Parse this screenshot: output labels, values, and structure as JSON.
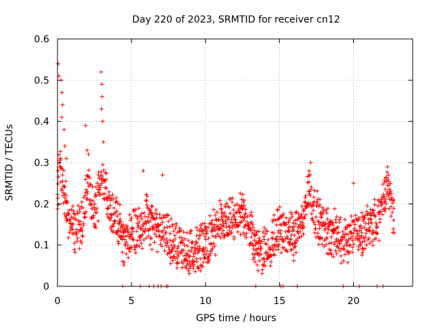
{
  "chart_data": {
    "type": "scatter",
    "title": "Day 220 of 2023, SRMTID for receiver cn12",
    "xlabel": "GPS time / hours",
    "ylabel": "SRMTID / TECUs",
    "xlim": [
      0,
      24
    ],
    "ylim": [
      0,
      0.6
    ],
    "xticks": [
      0,
      5,
      10,
      15,
      20
    ],
    "yticks": [
      0,
      0.1,
      0.2,
      0.3,
      0.4,
      0.5,
      0.6
    ],
    "xtick_labels": [
      "0",
      "5",
      "10",
      "15",
      "20"
    ],
    "ytick_labels": [
      "0",
      "0.1",
      "0.2",
      "0.3",
      "0.4",
      "0.5",
      "0.6"
    ],
    "grid": true,
    "marker": "plus",
    "color": "#ff0000",
    "series": [
      {
        "name": "SRMTID",
        "x_start": 0.0,
        "x_end": 22.75,
        "x_step": 0.025,
        "trend": [
          [
            0.0,
            0.2
          ],
          [
            0.15,
            0.3
          ],
          [
            0.4,
            0.24
          ],
          [
            0.8,
            0.15
          ],
          [
            1.2,
            0.13
          ],
          [
            1.7,
            0.17
          ],
          [
            2.1,
            0.25
          ],
          [
            2.5,
            0.17
          ],
          [
            3.0,
            0.25
          ],
          [
            3.5,
            0.2
          ],
          [
            4.0,
            0.17
          ],
          [
            4.5,
            0.1
          ],
          [
            5.0,
            0.13
          ],
          [
            5.5,
            0.14
          ],
          [
            6.0,
            0.17
          ],
          [
            6.5,
            0.14
          ],
          [
            7.0,
            0.14
          ],
          [
            7.5,
            0.12
          ],
          [
            8.0,
            0.1
          ],
          [
            8.5,
            0.08
          ],
          [
            9.0,
            0.085
          ],
          [
            9.5,
            0.09
          ],
          [
            10.0,
            0.1
          ],
          [
            10.5,
            0.12
          ],
          [
            11.0,
            0.15
          ],
          [
            11.5,
            0.15
          ],
          [
            12.0,
            0.16
          ],
          [
            12.5,
            0.17
          ],
          [
            13.0,
            0.14
          ],
          [
            13.5,
            0.09
          ],
          [
            14.0,
            0.09
          ],
          [
            14.5,
            0.11
          ],
          [
            15.0,
            0.14
          ],
          [
            15.5,
            0.12
          ],
          [
            16.0,
            0.12
          ],
          [
            16.5,
            0.15
          ],
          [
            17.0,
            0.24
          ],
          [
            17.4,
            0.18
          ],
          [
            18.0,
            0.14
          ],
          [
            18.5,
            0.13
          ],
          [
            19.0,
            0.12
          ],
          [
            19.5,
            0.11
          ],
          [
            20.0,
            0.13
          ],
          [
            20.5,
            0.12
          ],
          [
            21.0,
            0.16
          ],
          [
            21.5,
            0.15
          ],
          [
            22.0,
            0.2
          ],
          [
            22.3,
            0.25
          ],
          [
            22.75,
            0.16
          ]
        ],
        "spikes": [
          [
            0.05,
            0.54
          ],
          [
            0.1,
            0.51
          ],
          [
            0.25,
            0.5
          ],
          [
            0.3,
            0.47
          ],
          [
            0.35,
            0.44
          ],
          [
            0.28,
            0.41
          ],
          [
            0.45,
            0.38
          ],
          [
            0.5,
            0.34
          ],
          [
            0.6,
            0.31
          ],
          [
            0.2,
            0.31
          ],
          [
            1.9,
            0.39
          ],
          [
            2.0,
            0.33
          ],
          [
            2.1,
            0.32
          ],
          [
            2.95,
            0.52
          ],
          [
            3.0,
            0.49
          ],
          [
            3.02,
            0.46
          ],
          [
            2.98,
            0.43
          ],
          [
            3.05,
            0.4
          ],
          [
            3.1,
            0.35
          ],
          [
            5.8,
            0.28
          ],
          [
            7.1,
            0.27
          ],
          [
            17.1,
            0.3
          ],
          [
            17.0,
            0.28
          ],
          [
            20.0,
            0.25
          ],
          [
            22.3,
            0.29
          ]
        ],
        "zeros": [
          4.4,
          5.6,
          6.2,
          6.5,
          6.8,
          7.0,
          7.35,
          7.45,
          13.4,
          15.1,
          15.25,
          16.2,
          19.3,
          20.4,
          21.6,
          22.0
        ]
      }
    ]
  }
}
